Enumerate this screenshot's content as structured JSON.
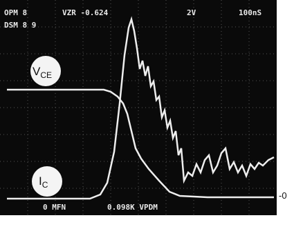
{
  "header": {
    "left_top": "OPM 8",
    "voltage": "VZR -0.624",
    "volts_div": "2V",
    "time_div": "100nS",
    "left_second": "DSM 8 9"
  },
  "labels": {
    "vce": {
      "main": "V",
      "sub": "CE"
    },
    "ic": {
      "main": "I",
      "sub": "C"
    }
  },
  "zero_marker": "-0",
  "footer": {
    "left": "0 MFN",
    "right": "0.098K VPDM"
  }
}
